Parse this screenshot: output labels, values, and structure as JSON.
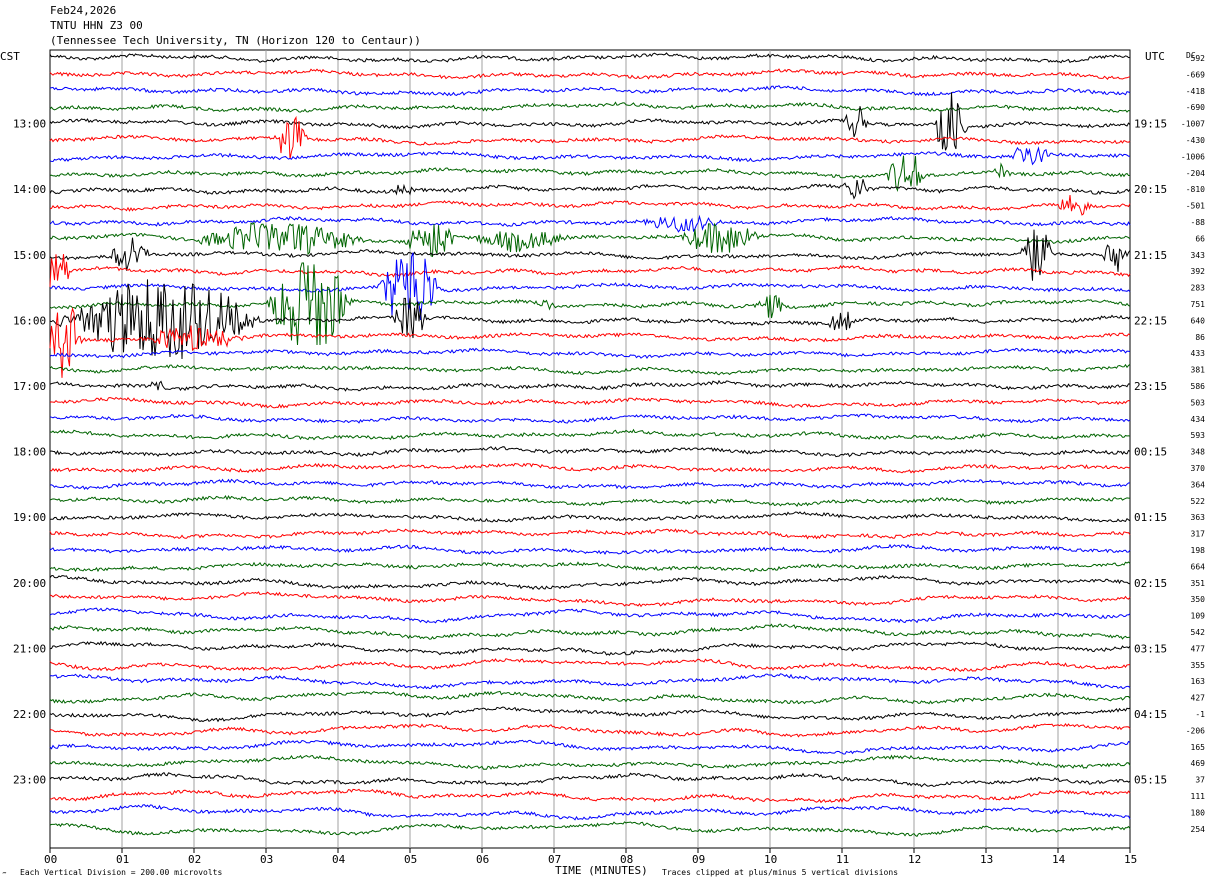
{
  "header": {
    "date": "Feb24,2026",
    "station": "TNTU HHN Z3 00",
    "location": "(Tennessee Tech University, TN (Horizon 120 to Centaur))"
  },
  "left_tz": "CST",
  "right_tz": "UTC",
  "dc_label": "DC",
  "footer": {
    "scale_note": "Each Vertical Division =  200.00 microvolts",
    "clip_note": "Traces clipped at plus/minus 5 vertical divisions",
    "corner_mark": "‴"
  },
  "colors": {
    "trace_cycle": [
      "#000000",
      "#ff0000",
      "#0000ff",
      "#006400"
    ],
    "grid": "#a0a0a0"
  },
  "chart_data": {
    "type": "line",
    "title": "TNTU HHN Z3 00",
    "xlabel": "TIME (MINUTES)",
    "ylabel": "",
    "xlim": [
      0,
      15
    ],
    "x_ticks": [
      "00",
      "01",
      "02",
      "03",
      "04",
      "05",
      "06",
      "07",
      "08",
      "09",
      "10",
      "11",
      "12",
      "13",
      "14",
      "15"
    ],
    "cst_hour_labels": [
      "13:00",
      "14:00",
      "15:00",
      "16:00",
      "17:00",
      "18:00",
      "19:00",
      "20:00",
      "21:00",
      "22:00",
      "23:00"
    ],
    "utc_hour_labels": [
      "19:15",
      "20:15",
      "21:15",
      "22:15",
      "23:15",
      "00:15",
      "01:15",
      "02:15",
      "03:15",
      "04:15",
      "05:15"
    ],
    "dc_offsets": [
      "592",
      "-669",
      "-418",
      "-690",
      "-1007",
      "-430",
      "-1006",
      "-204",
      "-810",
      "-501",
      "-88",
      "66",
      "343",
      "392",
      "283",
      "751",
      "640",
      "86",
      "433",
      "381",
      "586",
      "503",
      "434",
      "593",
      "348",
      "370",
      "364",
      "522",
      "363",
      "317",
      "198",
      "664",
      "351",
      "350",
      "109",
      "542",
      "477",
      "355",
      "163",
      "427",
      "-1",
      "-206",
      "165",
      "469",
      "37",
      "111",
      "180",
      "254"
    ],
    "trace_count": 48,
    "trace_minutes": 15,
    "events": [
      {
        "trace": 4,
        "minute": 12.5,
        "amplitude": 2.2,
        "duration": 0.5
      },
      {
        "trace": 4,
        "minute": 11.2,
        "amplitude": 1.0,
        "duration": 0.4
      },
      {
        "trace": 5,
        "minute": 3.35,
        "amplitude": 1.6,
        "duration": 0.5
      },
      {
        "trace": 6,
        "minute": 13.6,
        "amplitude": 0.8,
        "duration": 0.6
      },
      {
        "trace": 7,
        "minute": 11.9,
        "amplitude": 1.3,
        "duration": 0.6
      },
      {
        "trace": 7,
        "minute": 13.2,
        "amplitude": 0.6,
        "duration": 0.3
      },
      {
        "trace": 8,
        "minute": 11.2,
        "amplitude": 0.8,
        "duration": 0.4
      },
      {
        "trace": 8,
        "minute": 4.9,
        "amplitude": 0.4,
        "duration": 0.4
      },
      {
        "trace": 9,
        "minute": 14.2,
        "amplitude": 0.6,
        "duration": 0.6
      },
      {
        "trace": 10,
        "minute": 8.8,
        "amplitude": 0.5,
        "duration": 1.2
      },
      {
        "trace": 11,
        "minute": 3.2,
        "amplitude": 1.0,
        "duration": 2.5
      },
      {
        "trace": 11,
        "minute": 5.3,
        "amplitude": 1.3,
        "duration": 0.8
      },
      {
        "trace": 11,
        "minute": 9.3,
        "amplitude": 1.0,
        "duration": 1.2
      },
      {
        "trace": 11,
        "minute": 6.5,
        "amplitude": 0.6,
        "duration": 1.5
      },
      {
        "trace": 12,
        "minute": 1.1,
        "amplitude": 1.2,
        "duration": 0.6
      },
      {
        "trace": 12,
        "minute": 13.7,
        "amplitude": 1.8,
        "duration": 0.5
      },
      {
        "trace": 12,
        "minute": 14.8,
        "amplitude": 1.2,
        "duration": 0.4
      },
      {
        "trace": 13,
        "minute": 0.1,
        "amplitude": 1.5,
        "duration": 0.4
      },
      {
        "trace": 14,
        "minute": 5.0,
        "amplitude": 2.8,
        "duration": 0.9
      },
      {
        "trace": 15,
        "minute": 3.6,
        "amplitude": 3.5,
        "duration": 1.2
      },
      {
        "trace": 15,
        "minute": 10.0,
        "amplitude": 0.8,
        "duration": 0.4
      },
      {
        "trace": 15,
        "minute": 6.9,
        "amplitude": 0.4,
        "duration": 0.3
      },
      {
        "trace": 16,
        "minute": 1.5,
        "amplitude": 2.5,
        "duration": 3.0
      },
      {
        "trace": 16,
        "minute": 5.0,
        "amplitude": 1.5,
        "duration": 0.5
      },
      {
        "trace": 16,
        "minute": 11.0,
        "amplitude": 0.8,
        "duration": 0.4
      },
      {
        "trace": 17,
        "minute": 0.2,
        "amplitude": 2.5,
        "duration": 0.5
      },
      {
        "trace": 17,
        "minute": 2.0,
        "amplitude": 0.8,
        "duration": 1.5
      },
      {
        "trace": 20,
        "minute": 1.5,
        "amplitude": 0.4,
        "duration": 0.3
      }
    ]
  }
}
